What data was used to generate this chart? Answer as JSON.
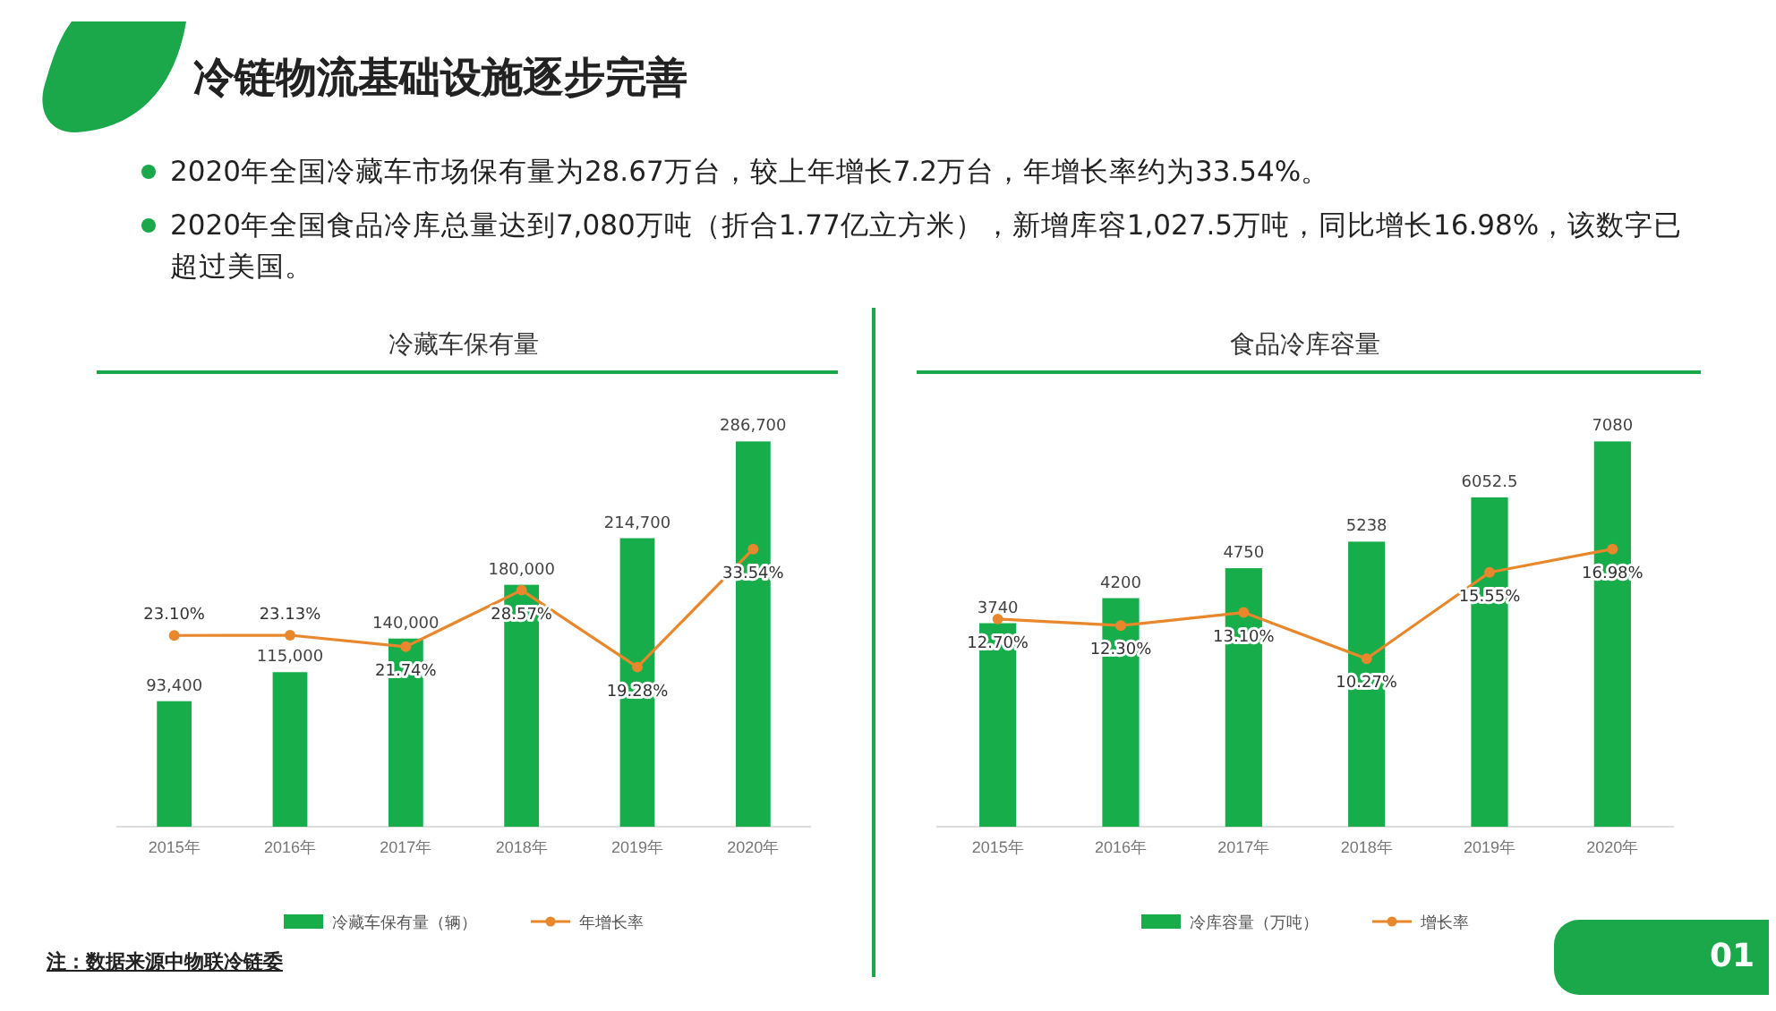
{
  "chart_data": [
    {
      "type": "other",
      "title": "冷链物流基础设施逐步完善",
      "annotations": [
        "2020年全国冷藏车市场保有量为28.67万台，较上年增长7.2万台，年增长率约为33.54%。",
        "2020年全国食品冷库总量达到7,080万吨（折合1.77亿立方米），新增库容1,027.5万吨，同比增长16.98%，该数字已超过美国。",
        "注：数据来源中物联冷链委",
        "01"
      ]
    },
    {
      "type": "bar",
      "title": "冷藏车保有量",
      "categories": [
        "2015年",
        "2016年",
        "2017年",
        "2018年",
        "2019年",
        "2020年"
      ],
      "tick_labels": "x",
      "legend": "bottom",
      "marker": "circle",
      "series": [
        {
          "name": "冷藏车保有量（辆）",
          "type": "bar",
          "color": "#17ad4a",
          "values": [
            93400,
            115000,
            140000,
            180000,
            214700,
            286700
          ],
          "value_labels": [
            "93,400",
            "115,000",
            "140,000",
            "180,000",
            "214,700",
            "286,700"
          ]
        },
        {
          "name": "年增长率",
          "type": "line",
          "axis": "y2",
          "color": "#e8872b",
          "values": [
            23.1,
            23.13,
            21.74,
            28.57,
            19.28,
            33.54
          ],
          "value_labels": [
            "23.10%",
            "23.13%",
            "21.74%",
            "28.57%",
            "19.28%",
            "33.54%"
          ]
        }
      ]
    },
    {
      "type": "bar",
      "title": "食品冷库容量",
      "categories": [
        "2015年",
        "2016年",
        "2017年",
        "2018年",
        "2019年",
        "2020年"
      ],
      "tick_labels": "x",
      "legend": "bottom",
      "marker": "circle",
      "series": [
        {
          "name": "冷库容量（万吨）",
          "type": "bar",
          "color": "#17ad4a",
          "values": [
            3740,
            4200,
            4750,
            5238,
            6052.5,
            7080
          ],
          "value_labels": [
            "3740",
            "4200",
            "4750",
            "5238",
            "6052.5",
            "7080"
          ]
        },
        {
          "name": "增长率",
          "type": "line",
          "axis": "y2",
          "color": "#e8872b",
          "values": [
            12.7,
            12.3,
            13.1,
            10.27,
            15.55,
            16.98
          ],
          "value_labels": [
            "12.70%",
            "12.30%",
            "13.10%",
            "10.27%",
            "15.55%",
            "16.98%"
          ]
        }
      ]
    }
  ]
}
